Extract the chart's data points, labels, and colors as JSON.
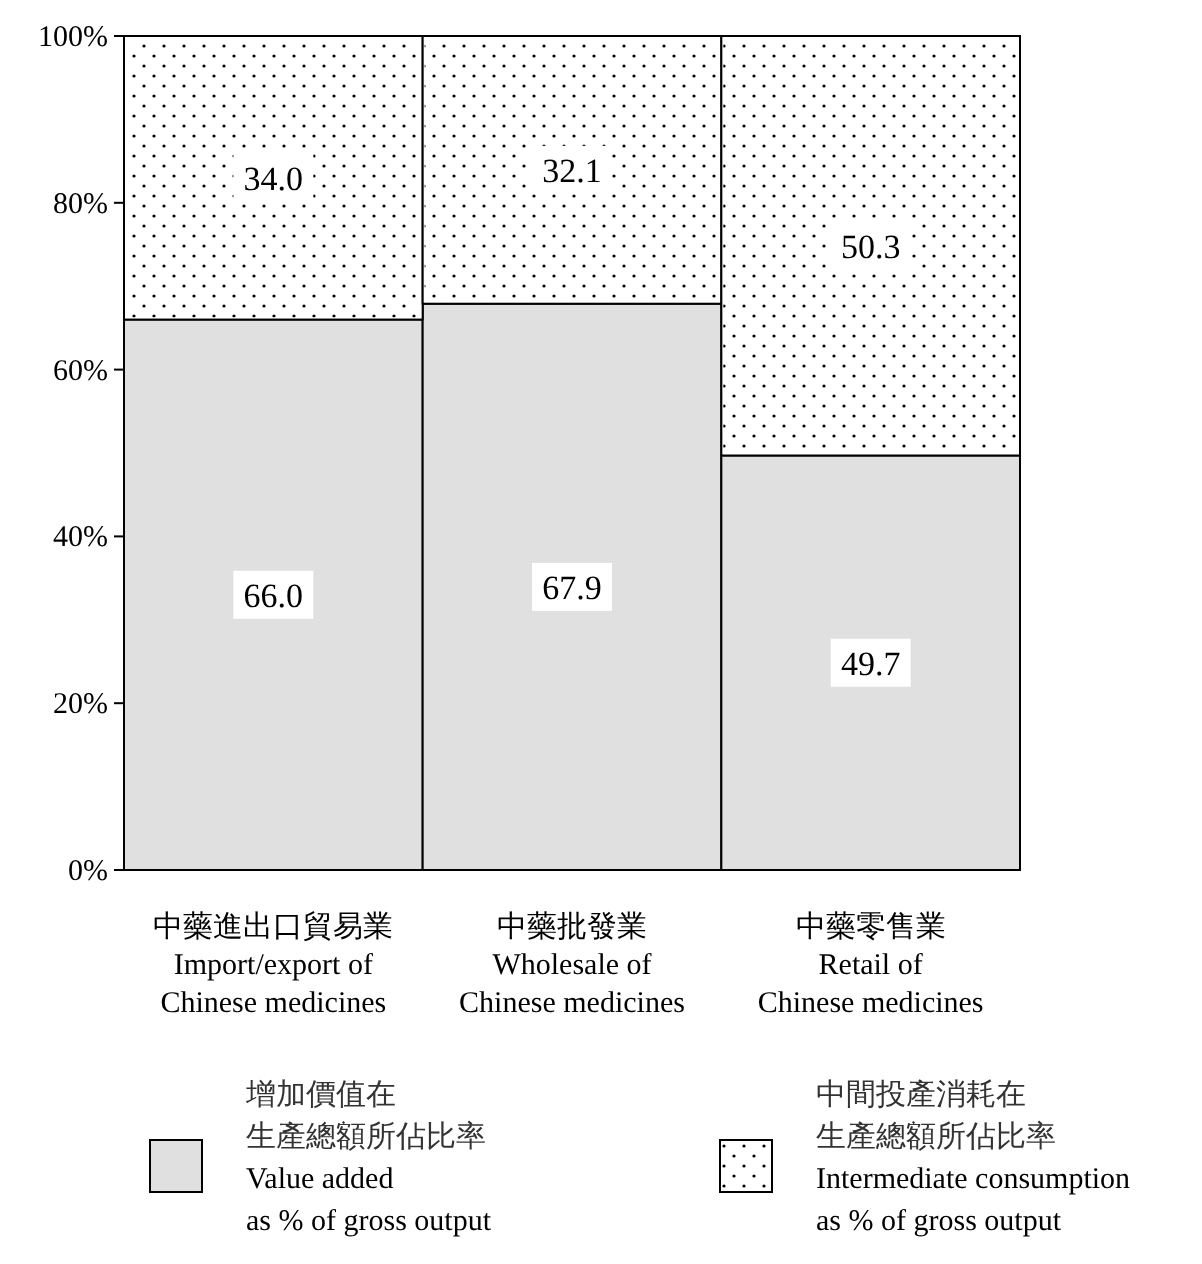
{
  "chart_data": {
    "type": "bar",
    "stacked": true,
    "categories": [
      "中藥進出口貿易業\nImport/export of\nChinese medicines",
      "中藥批發業\nWholesale of\nChinese medicines",
      "中藥零售業\nRetail of\nChinese medicines"
    ],
    "series": [
      {
        "name": "增加價值在生產總額所佔比率\nValue added\nas % of gross output",
        "color": "#e0e0e0",
        "values": [
          66.0,
          67.9,
          49.7
        ],
        "value_labels": [
          "66.0",
          "67.9",
          "49.7"
        ]
      },
      {
        "name": "中間投產消耗在生產總額所佔比率\nIntermediate consumption\nas % of gross output",
        "color": "#ffffff",
        "values": [
          34.0,
          32.1,
          50.3
        ],
        "value_labels": [
          "34.0",
          "32.1",
          "50.3"
        ]
      }
    ],
    "ylim": [
      0,
      100
    ],
    "yticks": [
      {
        "value": 0,
        "label": "0%"
      },
      {
        "value": 20,
        "label": "20%"
      },
      {
        "value": 40,
        "label": "40%"
      },
      {
        "value": 60,
        "label": "60%"
      },
      {
        "value": 80,
        "label": "80%"
      },
      {
        "value": 100,
        "label": "100%"
      }
    ],
    "grid": false,
    "legend": "bottom"
  }
}
